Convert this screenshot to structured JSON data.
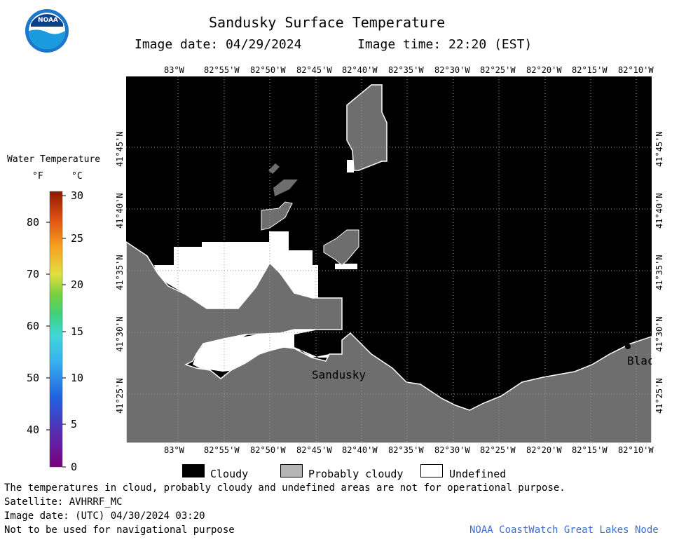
{
  "header": {
    "title": "Sandusky Surface Temperature",
    "image_date": "Image date: 04/29/2024",
    "image_time": "Image time: 22:20 (EST)"
  },
  "logo": {
    "text": "NOAA"
  },
  "map": {
    "longitudes": [
      "83°W",
      "82°55'W",
      "82°50'W",
      "82°45'W",
      "82°40'W",
      "82°35'W",
      "82°30'W",
      "82°25'W",
      "82°20'W",
      "82°15'W",
      "82°10'W"
    ],
    "latitudes": [
      "41°45'N",
      "41°40'N",
      "41°35'N",
      "41°30'N",
      "41°25'N"
    ],
    "labels": {
      "city": "Sandusky",
      "partial_city": "Blac"
    },
    "colors": {
      "water_cloudy": "#000000",
      "land": "#6e6e6e",
      "probably_cloudy": "#6e6e6e",
      "undefined": "#ffffff",
      "grid": "#999999"
    }
  },
  "colorbar": {
    "title": "Water Temperature",
    "unit_f": "°F",
    "unit_c": "°C",
    "f_ticks": [
      "80",
      "70",
      "60",
      "50",
      "40"
    ],
    "c_ticks": [
      "30",
      "25",
      "20",
      "15",
      "10",
      "5",
      "0"
    ]
  },
  "legend": {
    "cloudy": "Cloudy",
    "probably_cloudy": "Probably cloudy",
    "undefined": "Undefined"
  },
  "footer": {
    "note": "The temperatures in cloud, probably cloudy and undefined areas are not for operational purpose.",
    "satellite": "Satellite: AVHRRF_MC",
    "utc_date": "Image date: (UTC) 04/30/2024  03:20",
    "nav_warning": "Not to be used for navigational purpose",
    "credit": "NOAA CoastWatch Great Lakes Node"
  }
}
